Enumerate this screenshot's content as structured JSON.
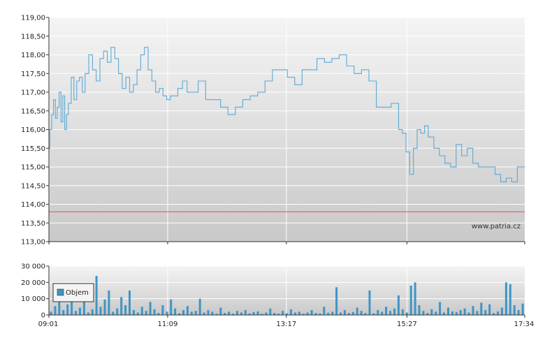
{
  "watermark": "www.patria.cz",
  "chart_data": [
    {
      "type": "line",
      "name": "price",
      "ylim": [
        113.0,
        119.0
      ],
      "y_ticks": [
        "113,00",
        "113,50",
        "114,00",
        "114,50",
        "115,00",
        "115,50",
        "116,00",
        "116,50",
        "117,00",
        "117,50",
        "118,00",
        "118,50",
        "119,00"
      ],
      "reference_line": {
        "value": 113.8,
        "color": "#d9534f"
      },
      "line_color": "#5aa9d6",
      "x_ticks": [
        "09:01",
        "11:09",
        "13:17",
        "15:27",
        "17:34"
      ],
      "series": [
        {
          "x": [
            "09:01",
            "09:02",
            "09:04",
            "09:06",
            "09:08",
            "09:10",
            "09:12",
            "09:14",
            "09:16",
            "09:18",
            "09:20",
            "09:22",
            "09:25",
            "09:28",
            "09:31",
            "09:34",
            "09:37",
            "09:40",
            "09:44",
            "09:48",
            "09:52",
            "09:56",
            "10:00",
            "10:04",
            "10:08",
            "10:12",
            "10:16",
            "10:20",
            "10:24",
            "10:28",
            "10:32",
            "10:36",
            "10:40",
            "10:44",
            "10:48",
            "10:52",
            "10:56",
            "11:00",
            "11:04",
            "11:08",
            "11:12",
            "11:16",
            "11:20",
            "11:25",
            "11:30",
            "11:36",
            "11:42",
            "11:50",
            "11:58",
            "12:06",
            "12:14",
            "12:22",
            "12:30",
            "12:38",
            "12:46",
            "12:54",
            "13:02",
            "13:10",
            "13:18",
            "13:26",
            "13:34",
            "13:42",
            "13:50",
            "13:58",
            "14:06",
            "14:14",
            "14:22",
            "14:30",
            "14:38",
            "14:46",
            "14:54",
            "15:02",
            "15:10",
            "15:14",
            "15:18",
            "15:22",
            "15:26",
            "15:30",
            "15:34",
            "15:38",
            "15:42",
            "15:46",
            "15:50",
            "15:56",
            "16:02",
            "16:08",
            "16:14",
            "16:20",
            "16:26",
            "16:32",
            "16:38",
            "16:44",
            "16:50",
            "16:56",
            "17:02",
            "17:08",
            "17:14",
            "17:20",
            "17:26",
            "17:30",
            "17:34"
          ],
          "y": [
            115.5,
            116.0,
            116.4,
            116.8,
            116.3,
            116.6,
            117.0,
            116.2,
            116.9,
            116.0,
            116.4,
            116.7,
            117.4,
            116.8,
            117.3,
            117.4,
            117.0,
            117.5,
            118.0,
            117.6,
            117.3,
            117.9,
            118.1,
            117.8,
            118.2,
            117.9,
            117.5,
            117.1,
            117.4,
            117.0,
            117.2,
            117.6,
            118.0,
            118.2,
            117.6,
            117.3,
            117.0,
            117.1,
            116.9,
            116.8,
            116.9,
            116.9,
            117.1,
            117.3,
            117.0,
            117.0,
            117.3,
            116.8,
            116.8,
            116.6,
            116.4,
            116.6,
            116.8,
            116.9,
            117.0,
            117.3,
            117.6,
            117.6,
            117.4,
            117.2,
            117.6,
            117.6,
            117.9,
            117.8,
            117.9,
            118.0,
            117.7,
            117.5,
            117.6,
            117.3,
            116.6,
            116.6,
            116.7,
            116.7,
            116.0,
            115.9,
            115.4,
            114.8,
            115.5,
            116.0,
            115.9,
            116.1,
            115.8,
            115.5,
            115.3,
            115.1,
            115.0,
            115.6,
            115.3,
            115.5,
            115.1,
            115.0,
            115.0,
            115.0,
            114.8,
            114.6,
            114.7,
            114.6,
            115.0,
            115.0,
            115.0
          ]
        }
      ]
    },
    {
      "type": "bar",
      "name": "volume",
      "ylim": [
        0,
        30000
      ],
      "y_ticks": [
        "0",
        "10 000",
        "20 000",
        "30 000"
      ],
      "bar_color": "#3f95c5",
      "legend": {
        "label": "Objem",
        "placement": "top-left"
      },
      "x_ticks": [
        "09:01",
        "11:09",
        "13:17",
        "15:27",
        "17:34"
      ],
      "values": [
        2000,
        5500,
        9000,
        3000,
        6500,
        10000,
        2500,
        4500,
        8000,
        1500,
        3500,
        24000,
        5000,
        9500,
        15000,
        2000,
        4000,
        11000,
        6000,
        15000,
        3000,
        1500,
        5000,
        2500,
        8000,
        3500,
        1200,
        6000,
        2000,
        9500,
        4000,
        1000,
        3000,
        5500,
        2000,
        2500,
        10000,
        1500,
        3000,
        2000,
        800,
        4500,
        1200,
        2000,
        800,
        2500,
        1500,
        3000,
        900,
        1800,
        2200,
        700,
        1500,
        4000,
        1200,
        800,
        2500,
        1000,
        3500,
        1500,
        2000,
        800,
        1500,
        3000,
        1200,
        900,
        5000,
        1400,
        2000,
        17000,
        1500,
        3000,
        1200,
        1800,
        4500,
        2500,
        1200,
        15000,
        1000,
        3000,
        2000,
        5000,
        2500,
        4000,
        12000,
        3500,
        1500,
        18000,
        20000,
        6000,
        2500,
        1200,
        3500,
        2000,
        8000,
        1500,
        4500,
        2200,
        1800,
        3000,
        4000,
        1500,
        5500,
        2500,
        7500,
        3000,
        6500,
        1200,
        2200,
        4500,
        20000,
        19000,
        6000,
        3000,
        7000
      ]
    }
  ]
}
